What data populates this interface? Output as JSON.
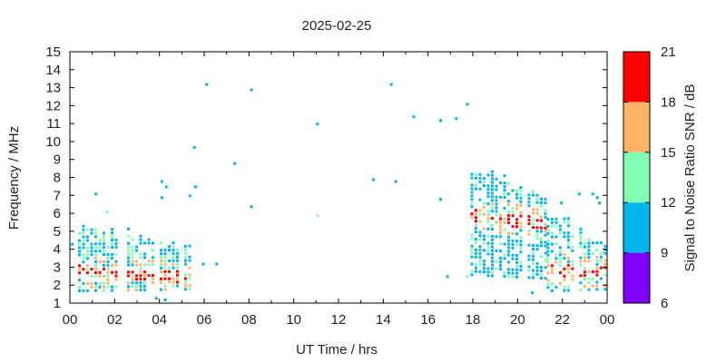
{
  "chart_data": {
    "type": "scatter",
    "title": "2025-02-25",
    "xlabel": "UT Time / hrs",
    "ylabel": "Frequency / MHz",
    "xlim": [
      0,
      24
    ],
    "ylim": [
      1,
      15
    ],
    "x_ticks": [
      "00",
      "02",
      "04",
      "06",
      "08",
      "10",
      "12",
      "14",
      "16",
      "18",
      "20",
      "22",
      "00"
    ],
    "y_ticks": [
      "1",
      "2",
      "3",
      "4",
      "5",
      "6",
      "7",
      "8",
      "9",
      "10",
      "11",
      "12",
      "13",
      "14",
      "15"
    ],
    "grid": false,
    "colorbar": {
      "label": "Signal to Noise Ratio SNR / dB",
      "ticks": [
        "6",
        "9",
        "12",
        "15",
        "18",
        "21"
      ],
      "range": [
        6,
        21
      ],
      "bands": [
        {
          "from": 6,
          "to": 9,
          "color": "#8000ff"
        },
        {
          "from": 9,
          "to": 12,
          "color": "#00b4f0"
        },
        {
          "from": 12,
          "to": 15,
          "color": "#80ffb4"
        },
        {
          "from": 15,
          "to": 18,
          "color": "#ffb464"
        },
        {
          "from": 18,
          "to": 21,
          "color": "#ff0000"
        }
      ]
    },
    "isolated_points": [
      [
        1.1,
        7.1,
        10
      ],
      [
        1.6,
        6.1,
        13
      ],
      [
        4.05,
        7.8,
        10
      ],
      [
        4.25,
        7.5,
        10
      ],
      [
        4.05,
        6.9,
        10
      ],
      [
        5.3,
        7.0,
        10
      ],
      [
        5.55,
        7.5,
        10
      ],
      [
        5.5,
        9.7,
        10
      ],
      [
        6.05,
        13.2,
        10
      ],
      [
        7.3,
        8.8,
        10
      ],
      [
        8.05,
        12.9,
        10
      ],
      [
        8.05,
        6.4,
        10
      ],
      [
        11.0,
        11.0,
        10
      ],
      [
        11.0,
        5.9,
        13
      ],
      [
        13.5,
        7.9,
        10
      ],
      [
        14.3,
        13.2,
        10
      ],
      [
        14.5,
        7.8,
        10
      ],
      [
        15.3,
        11.4,
        10
      ],
      [
        16.5,
        11.2,
        10
      ],
      [
        16.5,
        6.8,
        10
      ],
      [
        16.8,
        2.5,
        10
      ],
      [
        17.2,
        11.3,
        10
      ],
      [
        17.7,
        12.1,
        10
      ],
      [
        6.5,
        3.2,
        10
      ],
      [
        5.9,
        3.2,
        10
      ],
      [
        22.7,
        7.1,
        10
      ],
      [
        23.3,
        7.1,
        10
      ],
      [
        23.6,
        6.6,
        10
      ],
      [
        23.5,
        6.9,
        10
      ],
      [
        21.9,
        6.6,
        10
      ],
      [
        20.6,
        1.6,
        10
      ],
      [
        17.7,
        2.5,
        13
      ],
      [
        4.2,
        1.2,
        10
      ],
      [
        3.8,
        1.3,
        10
      ],
      [
        0.05,
        4.3,
        10
      ]
    ],
    "clusters": [
      {
        "x_range": [
          0.0,
          5.4
        ],
        "f_low_start": 1.7,
        "f_low_end": 1.8,
        "f_high_start": 5.4,
        "f_high_end": 4.3,
        "snr_peak_start": 2.8,
        "snr_peak_end": 2.4,
        "density": 0.7,
        "seed": 7
      },
      {
        "x_range": [
          17.9,
          21.3
        ],
        "f_low_start": 2.6,
        "f_low_end": 2.4,
        "f_high_start": 8.6,
        "f_high_end": 7.0,
        "snr_peak_start": 5.9,
        "snr_peak_end": 5.4,
        "density": 0.6,
        "seed": 11
      },
      {
        "x_range": [
          21.3,
          24.0
        ],
        "f_low_start": 1.7,
        "f_low_end": 1.8,
        "f_high_start": 6.2,
        "f_high_end": 4.4,
        "snr_peak_start": 2.9,
        "snr_peak_end": 2.8,
        "density": 0.55,
        "seed": 19
      }
    ]
  }
}
